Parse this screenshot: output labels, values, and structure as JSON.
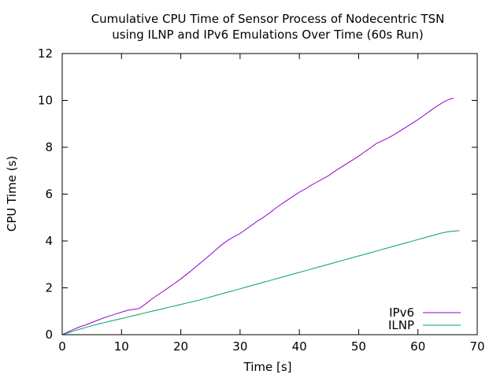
{
  "chart_data": {
    "type": "line",
    "title_lines": [
      "Cumulative CPU Time of Sensor Process of Nodecentric TSN",
      "using ILNP and IPv6 Emulations Over Time (60s Run)"
    ],
    "xlabel": "Time [s]",
    "ylabel": "CPU Time (s)",
    "xlim": [
      0,
      70
    ],
    "ylim": [
      0,
      12
    ],
    "xticks": [
      0,
      10,
      20,
      30,
      40,
      50,
      60,
      70
    ],
    "yticks": [
      0,
      2,
      4,
      6,
      8,
      10,
      12
    ],
    "grid": false,
    "legend_position": "bottom-right",
    "series": [
      {
        "name": "IPv6",
        "color": "#9400d3",
        "x": [
          0,
          1,
          2,
          3,
          4,
          5,
          6,
          7,
          8,
          9,
          10,
          11,
          12,
          13,
          14,
          15,
          16,
          17,
          18,
          19,
          20,
          21,
          22,
          23,
          24,
          25,
          26,
          27,
          28,
          29,
          30,
          31,
          32,
          33,
          34,
          35,
          36,
          37,
          38,
          39,
          40,
          41,
          42,
          43,
          44,
          45,
          46,
          47,
          48,
          49,
          50,
          51,
          52,
          53,
          54,
          55,
          56,
          57,
          58,
          59,
          60,
          61,
          62,
          63,
          64,
          65,
          66
        ],
        "y": [
          0,
          0.12,
          0.24,
          0.34,
          0.42,
          0.52,
          0.62,
          0.72,
          0.8,
          0.88,
          0.96,
          1.04,
          1.08,
          1.12,
          1.3,
          1.5,
          1.68,
          1.85,
          2.02,
          2.2,
          2.38,
          2.58,
          2.78,
          3.0,
          3.2,
          3.42,
          3.64,
          3.86,
          4.04,
          4.18,
          4.32,
          4.5,
          4.68,
          4.86,
          5.02,
          5.2,
          5.4,
          5.58,
          5.75,
          5.92,
          6.08,
          6.22,
          6.38,
          6.52,
          6.66,
          6.8,
          6.98,
          7.14,
          7.3,
          7.46,
          7.62,
          7.8,
          7.98,
          8.16,
          8.28,
          8.4,
          8.54,
          8.7,
          8.86,
          9.02,
          9.18,
          9.36,
          9.54,
          9.72,
          9.88,
          10.02,
          10.1
        ]
      },
      {
        "name": "ILNP",
        "color": "#009e73",
        "x": [
          0,
          1,
          2,
          3,
          4,
          5,
          6,
          7,
          8,
          9,
          10,
          11,
          12,
          13,
          14,
          15,
          16,
          17,
          18,
          19,
          20,
          21,
          22,
          23,
          24,
          25,
          26,
          27,
          28,
          29,
          30,
          31,
          32,
          33,
          34,
          35,
          36,
          37,
          38,
          39,
          40,
          41,
          42,
          43,
          44,
          45,
          46,
          47,
          48,
          49,
          50,
          51,
          52,
          53,
          54,
          55,
          56,
          57,
          58,
          59,
          60,
          61,
          62,
          63,
          64,
          65,
          66,
          67
        ],
        "y": [
          0,
          0.08,
          0.16,
          0.24,
          0.31,
          0.38,
          0.45,
          0.51,
          0.57,
          0.63,
          0.69,
          0.75,
          0.81,
          0.87,
          0.93,
          0.99,
          1.05,
          1.11,
          1.17,
          1.23,
          1.29,
          1.35,
          1.41,
          1.47,
          1.54,
          1.61,
          1.68,
          1.75,
          1.82,
          1.89,
          1.96,
          2.03,
          2.1,
          2.17,
          2.24,
          2.31,
          2.38,
          2.45,
          2.52,
          2.59,
          2.66,
          2.73,
          2.8,
          2.87,
          2.94,
          3.01,
          3.08,
          3.15,
          3.22,
          3.29,
          3.36,
          3.43,
          3.5,
          3.57,
          3.64,
          3.71,
          3.78,
          3.85,
          3.92,
          3.99,
          4.06,
          4.13,
          4.2,
          4.27,
          4.34,
          4.39,
          4.42,
          4.44
        ]
      }
    ]
  }
}
